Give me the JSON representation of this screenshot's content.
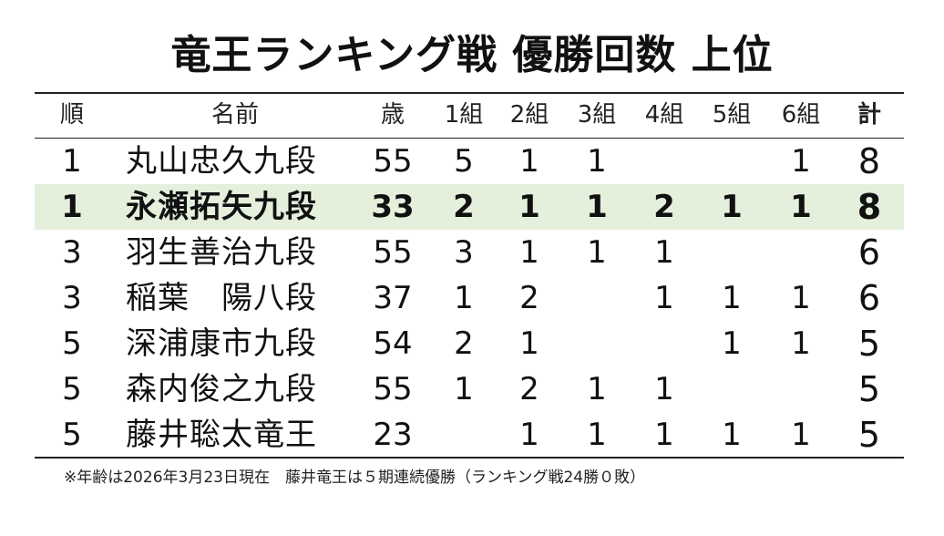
{
  "title": "竜王ランキング戦 優勝回数 上位",
  "headers": {
    "rank": "順",
    "name": "名前",
    "age": "歳",
    "g1": "1組",
    "g2": "2組",
    "g3": "3組",
    "g4": "4組",
    "g5": "5組",
    "g6": "6組",
    "total": "計"
  },
  "rows": [
    {
      "rank": "1",
      "name": "丸山忠久九段",
      "age": "55",
      "g1": "5",
      "g2": "1",
      "g3": "1",
      "g4": "",
      "g5": "",
      "g6": "1",
      "total": "8"
    },
    {
      "rank": "1",
      "name": "永瀬拓矢九段",
      "age": "33",
      "g1": "2",
      "g2": "1",
      "g3": "1",
      "g4": "2",
      "g5": "1",
      "g6": "1",
      "total": "8"
    },
    {
      "rank": "3",
      "name": "羽生善治九段",
      "age": "55",
      "g1": "3",
      "g2": "1",
      "g3": "1",
      "g4": "1",
      "g5": "",
      "g6": "",
      "total": "6"
    },
    {
      "rank": "3",
      "name": "稲葉　陽八段",
      "age": "37",
      "g1": "1",
      "g2": "2",
      "g3": "",
      "g4": "1",
      "g5": "1",
      "g6": "1",
      "total": "6"
    },
    {
      "rank": "5",
      "name": "深浦康市九段",
      "age": "54",
      "g1": "2",
      "g2": "1",
      "g3": "",
      "g4": "",
      "g5": "1",
      "g6": "1",
      "total": "5"
    },
    {
      "rank": "5",
      "name": "森内俊之九段",
      "age": "55",
      "g1": "1",
      "g2": "2",
      "g3": "1",
      "g4": "1",
      "g5": "",
      "g6": "",
      "total": "5"
    },
    {
      "rank": "5",
      "name": "藤井聡太竜王",
      "age": "23",
      "g1": "",
      "g2": "1",
      "g3": "1",
      "g4": "1",
      "g5": "1",
      "g6": "1",
      "total": "5"
    }
  ],
  "highlight_color": "#e4efdc",
  "footnote": "※年齢は2026年3月23日現在　藤井竜王は５期連続優勝（ランキング戦24勝０敗）"
}
